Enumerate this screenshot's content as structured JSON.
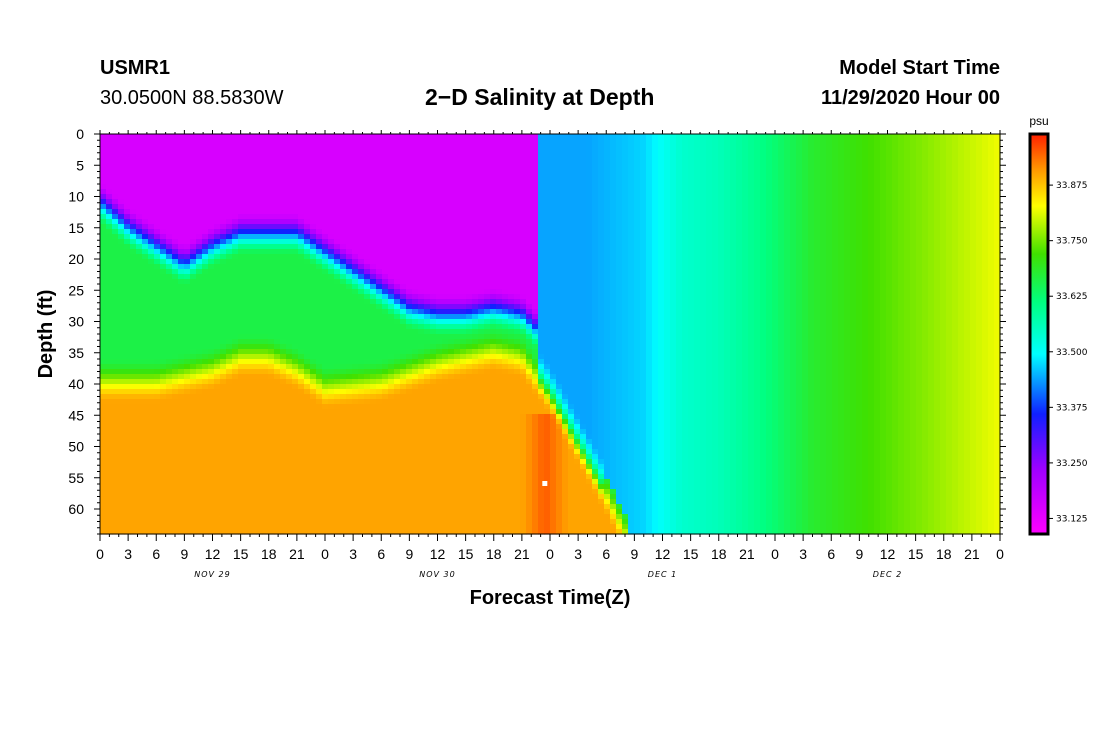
{
  "header": {
    "station_id": "USMR1",
    "coords": "30.0500N 88.5830W",
    "title": "2−D Salinity at Depth",
    "start_label": "Model Start Time",
    "start_value": "11/29/2020 Hour 00"
  },
  "chart_data": {
    "type": "heatmap",
    "title": "2-D Salinity at Depth",
    "xlabel": "Forecast Time(Z)",
    "ylabel": "Depth (ft)",
    "x_range_hours": [
      0,
      96
    ],
    "y_range_ft": [
      0,
      64
    ],
    "x_tick_labels": [
      "0",
      "3",
      "6",
      "9",
      "12",
      "15",
      "18",
      "21",
      "0",
      "3",
      "6",
      "9",
      "12",
      "15",
      "18",
      "21",
      "0",
      "3",
      "6",
      "9",
      "12",
      "15",
      "18",
      "21",
      "0",
      "3",
      "6",
      "9",
      "12",
      "15",
      "18",
      "21",
      "0"
    ],
    "x_tick_hours": [
      0,
      3,
      6,
      9,
      12,
      15,
      18,
      21,
      24,
      27,
      30,
      33,
      36,
      39,
      42,
      45,
      48,
      51,
      54,
      57,
      60,
      63,
      66,
      69,
      72,
      75,
      78,
      81,
      84,
      87,
      90,
      93,
      96
    ],
    "date_labels": [
      {
        "text": "NOV 29",
        "hour": 12
      },
      {
        "text": "NOV 30",
        "hour": 36
      },
      {
        "text": "DEC  1",
        "hour": 60
      },
      {
        "text": "DEC  2",
        "hour": 84
      }
    ],
    "y_tick_labels": [
      "0",
      "5",
      "10",
      "15",
      "20",
      "25",
      "30",
      "35",
      "40",
      "45",
      "50",
      "55",
      "60"
    ],
    "y_ticks_ft": [
      0,
      5,
      10,
      15,
      20,
      25,
      30,
      35,
      40,
      45,
      50,
      55,
      60
    ],
    "colorbar": {
      "unit": "psu",
      "min": 33.09,
      "max": 33.99,
      "labels": [
        "33.875",
        "33.750",
        "33.625",
        "33.500",
        "33.375",
        "33.250",
        "33.125"
      ],
      "label_values": [
        33.875,
        33.75,
        33.625,
        33.5,
        33.375,
        33.25,
        33.125
      ]
    },
    "surface_boundary_depth_ft": [
      [
        0,
        10
      ],
      [
        3,
        14
      ],
      [
        6,
        17
      ],
      [
        9,
        20
      ],
      [
        12,
        17
      ],
      [
        15,
        15
      ],
      [
        18,
        15
      ],
      [
        21,
        15
      ],
      [
        24,
        18
      ],
      [
        27,
        21
      ],
      [
        30,
        24
      ],
      [
        33,
        27
      ],
      [
        36,
        28
      ],
      [
        39,
        28
      ],
      [
        42,
        27
      ],
      [
        45,
        28
      ],
      [
        47,
        31
      ]
    ],
    "deep_boundary_depth_ft": [
      [
        0,
        40
      ],
      [
        6,
        40
      ],
      [
        12,
        38
      ],
      [
        15,
        36
      ],
      [
        18,
        36
      ],
      [
        21,
        38
      ],
      [
        24,
        41
      ],
      [
        30,
        40
      ],
      [
        36,
        37
      ],
      [
        42,
        35
      ],
      [
        45,
        36
      ],
      [
        48,
        42
      ],
      [
        51,
        50
      ],
      [
        54,
        58
      ],
      [
        56,
        64
      ]
    ],
    "column_salinity_psu": [
      [
        48,
        33.45
      ],
      [
        52,
        33.44
      ],
      [
        58,
        33.47
      ],
      [
        62,
        33.54
      ],
      [
        66,
        33.56
      ],
      [
        70,
        33.6
      ],
      [
        76,
        33.68
      ],
      [
        82,
        33.72
      ],
      [
        88,
        33.76
      ],
      [
        96,
        33.82
      ]
    ],
    "upper_layer_psu": 33.15,
    "lower_layer_psu": 33.9,
    "marker": {
      "hour": 47.5,
      "depth_ft": 56
    }
  }
}
